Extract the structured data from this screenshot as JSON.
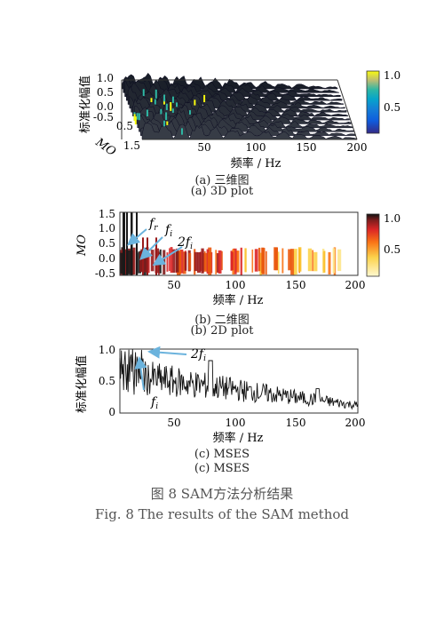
{
  "panel_a": {
    "ylabel": "标准化幅值",
    "mo_label": "MO",
    "xlabel": "频率 / Hz",
    "z_ticks": [
      "1.0",
      "0.5",
      "0.0",
      "-0.5"
    ],
    "mo_ticks": [
      "0.5",
      "1.5"
    ],
    "x_ticks": [
      "50",
      "100",
      "150",
      "200"
    ],
    "colorbar_ticks": [
      "1.0",
      "0.5"
    ],
    "caption_cn": "(a)  三维图",
    "caption_en": "(a)  3D plot"
  },
  "panel_b": {
    "ylabel": "MO",
    "xlabel": "频率 / Hz",
    "y_ticks": [
      "1.5",
      "1.0",
      "0.5",
      "0.0",
      "-0.5"
    ],
    "x_ticks": [
      "50",
      "100",
      "150",
      "200"
    ],
    "colorbar_ticks": [
      "1.0",
      "0.5"
    ],
    "ann_fr": "f",
    "ann_fr_sub": "r",
    "ann_fi": "f",
    "ann_fi_sub": "i",
    "ann_2fi": "2f",
    "ann_2fi_sub": "i",
    "caption_cn": "(b)  二维图",
    "caption_en": "(b)  2D plot"
  },
  "panel_c": {
    "ylabel": "标准化幅值",
    "xlabel": "频率 / Hz",
    "y_ticks": [
      "1.0",
      "0.5",
      "0"
    ],
    "x_ticks": [
      "50",
      "100",
      "150",
      "200"
    ],
    "ann_2fi": "2f",
    "ann_2fi_sub": "i",
    "ann_fi": "f",
    "ann_fi_sub": "i",
    "caption_cn": "(c)  MSES",
    "caption_en": "(c)  MSES"
  },
  "figure": {
    "caption_cn": "图 8    SAM方法分析结果",
    "caption_en": "Fig. 8    The results of the SAM method"
  },
  "colors": {
    "arrow": "#6bb3dd",
    "hot_dark": "#8b0000",
    "hot_mid": "#e0301e",
    "hot_light": "#fde68a"
  },
  "chart_data": [
    {
      "type": "surface",
      "panel": "a",
      "x_range": [
        0,
        200
      ],
      "mo_range": [
        -0.5,
        1.5
      ],
      "z_range": [
        -0.5,
        1.0
      ],
      "colorbar_range": [
        0,
        1.0
      ]
    },
    {
      "type": "heatmap",
      "panel": "b",
      "x_range": [
        0,
        200
      ],
      "y_range": [
        -0.5,
        1.5
      ],
      "colorbar_range": [
        0,
        1.0
      ],
      "annotations": [
        "fr",
        "fi",
        "2fi"
      ]
    },
    {
      "type": "line",
      "panel": "c",
      "x_range": [
        0,
        200
      ],
      "y_range": [
        0,
        1.0
      ],
      "x": [
        5,
        8,
        10,
        12,
        15,
        18,
        20,
        22,
        25,
        28,
        30,
        33,
        36,
        40,
        45,
        50,
        55,
        60,
        65,
        70,
        75,
        80,
        85,
        90,
        95,
        100,
        105,
        110,
        115,
        120,
        125,
        130,
        135,
        140,
        145,
        150,
        155,
        160,
        165,
        170,
        175,
        180,
        185,
        190,
        195,
        200
      ],
      "y": [
        0.45,
        0.7,
        1.0,
        0.55,
        0.9,
        0.6,
        1.0,
        0.5,
        0.75,
        0.4,
        0.85,
        0.45,
        0.65,
        0.4,
        0.5,
        0.45,
        0.4,
        0.55,
        0.35,
        0.6,
        0.4,
        0.8,
        0.3,
        0.45,
        0.25,
        0.35,
        0.3,
        0.25,
        0.3,
        0.2,
        0.25,
        0.3,
        0.2,
        0.22,
        0.18,
        0.25,
        0.15,
        0.18,
        0.15,
        0.35,
        0.12,
        0.15,
        0.1,
        0.12,
        0.08,
        0.1
      ]
    }
  ]
}
